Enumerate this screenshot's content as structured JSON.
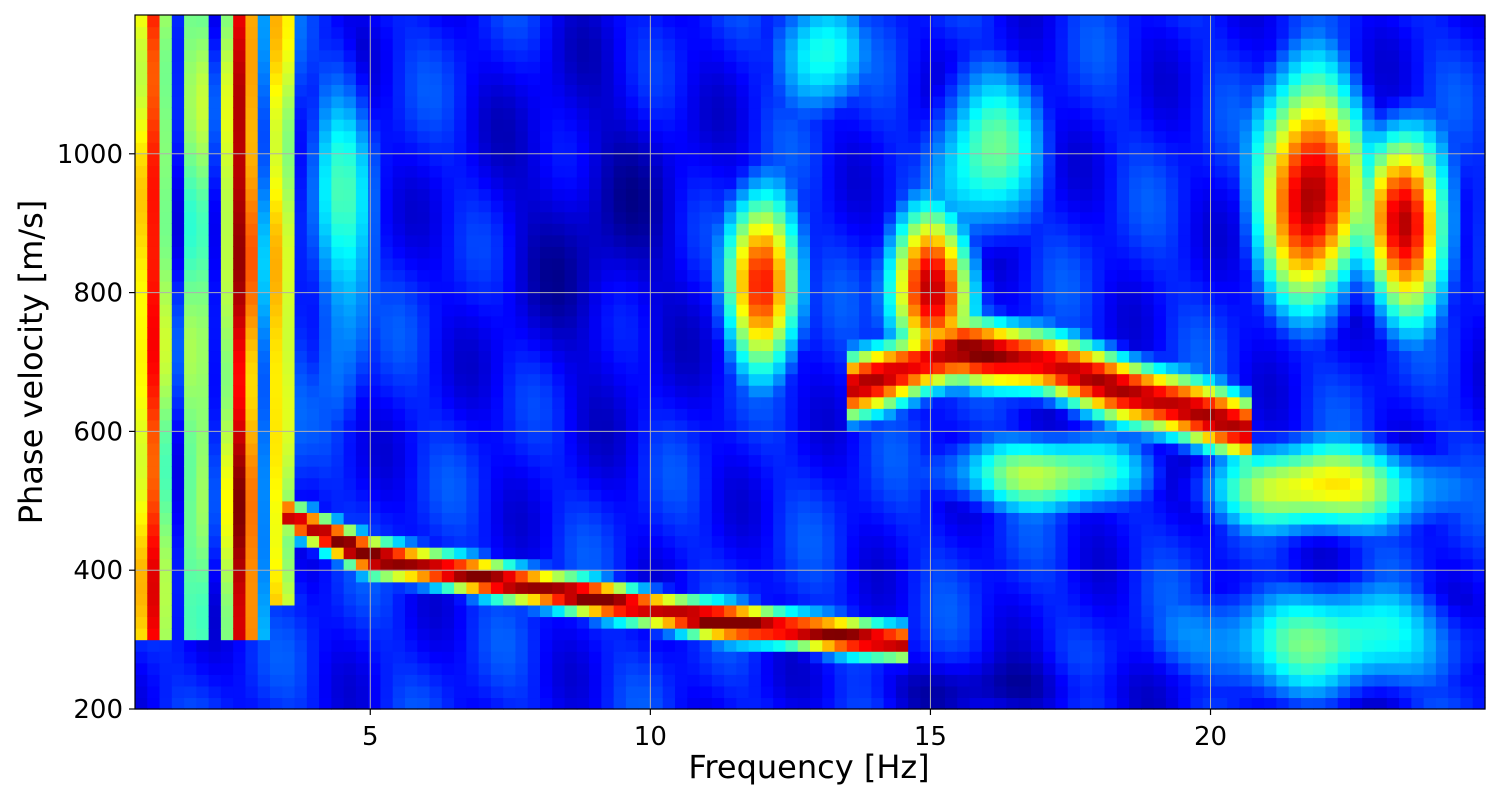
{
  "chart_data": {
    "type": "heatmap",
    "title": "",
    "xlabel": "Frequency [Hz]",
    "ylabel": "Phase velocity [m/s]",
    "xlim": [
      0.8,
      24.9
    ],
    "ylim": [
      200,
      1200
    ],
    "xticks": [
      5,
      10,
      15,
      20
    ],
    "xtick_labels": [
      "5",
      "10",
      "15",
      "20"
    ],
    "yticks": [
      200,
      400,
      600,
      800,
      1000
    ],
    "ytick_labels": [
      "200",
      "400",
      "600",
      "800",
      "1000"
    ],
    "grid": true,
    "colormap": "jet",
    "value_range": [
      0,
      1
    ],
    "background_level": 0.15,
    "features": [
      {
        "kind": "column",
        "f": 1.1,
        "width": 0.35,
        "amp": 0.85,
        "vmin": 300,
        "vmax": 1200
      },
      {
        "kind": "column",
        "f": 1.9,
        "width": 0.25,
        "amp": 0.6,
        "vmin": 300,
        "vmax": 1200
      },
      {
        "kind": "column",
        "f": 2.7,
        "width": 0.35,
        "amp": 0.95,
        "vmin": 300,
        "vmax": 1200
      },
      {
        "kind": "column",
        "f": 3.4,
        "width": 0.3,
        "amp": 0.7,
        "vmin": 350,
        "vmax": 1200
      },
      {
        "kind": "ridge",
        "f": [
          3.5,
          5,
          7,
          9,
          11,
          13,
          14.5
        ],
        "v": [
          480,
          420,
          390,
          360,
          330,
          310,
          295
        ],
        "width": 28,
        "amp": 1.0
      },
      {
        "kind": "blob",
        "f": 12,
        "v": 820,
        "sf": 0.7,
        "sv": 130,
        "amp": 0.95
      },
      {
        "kind": "blob",
        "f": 15,
        "v": 800,
        "sf": 0.8,
        "sv": 120,
        "amp": 0.95
      },
      {
        "kind": "ridge",
        "f": [
          13.5,
          15.5,
          17,
          18.5,
          20,
          20.8
        ],
        "v": [
          660,
          720,
          700,
          660,
          620,
          600
        ],
        "width": 50,
        "amp": 0.95
      },
      {
        "kind": "blob",
        "f": 21.8,
        "v": 950,
        "sf": 1.0,
        "sv": 170,
        "amp": 1.0
      },
      {
        "kind": "blob",
        "f": 23.5,
        "v": 900,
        "sf": 0.8,
        "sv": 140,
        "amp": 0.95
      },
      {
        "kind": "blob",
        "f": 17,
        "v": 540,
        "sf": 2.0,
        "sv": 60,
        "amp": 0.55
      },
      {
        "kind": "blob",
        "f": 22,
        "v": 520,
        "sf": 2.2,
        "sv": 70,
        "amp": 0.65
      },
      {
        "kind": "blob",
        "f": 16,
        "v": 1000,
        "sf": 1.2,
        "sv": 150,
        "amp": 0.45
      },
      {
        "kind": "blob",
        "f": 4.5,
        "v": 900,
        "sf": 0.7,
        "sv": 300,
        "amp": 0.4
      },
      {
        "kind": "blob",
        "f": 13,
        "v": 1150,
        "sf": 0.9,
        "sv": 100,
        "amp": 0.45
      },
      {
        "kind": "blob",
        "f": 22,
        "v": 300,
        "sf": 3.0,
        "sv": 90,
        "amp": 0.45
      },
      {
        "kind": "dip",
        "f": 9,
        "v": 900,
        "sf": 1.8,
        "sv": 250,
        "amp": 0.12
      },
      {
        "kind": "dip",
        "f": 16,
        "v": 230,
        "sf": 2.5,
        "sv": 40,
        "amp": 0.12
      }
    ]
  }
}
